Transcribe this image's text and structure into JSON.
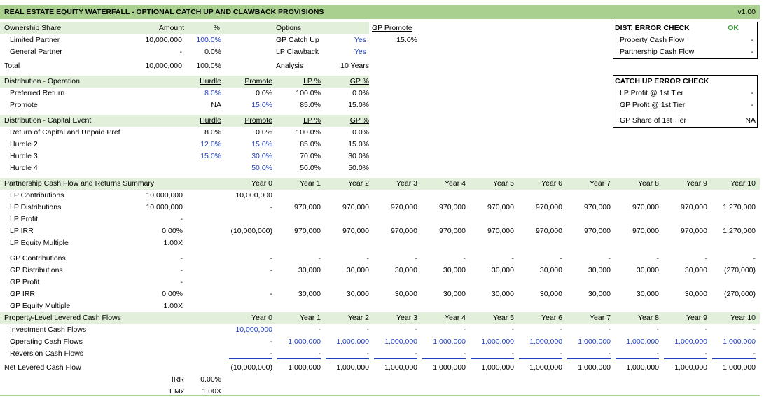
{
  "header": {
    "title": "REAL ESTATE EQUITY WATERFALL - OPTIONAL CATCH UP AND CLAWBACK PROVISIONS",
    "version": "v1.00"
  },
  "ownership": {
    "columns": [
      "Ownership Share",
      "Amount",
      "%"
    ],
    "rows": [
      [
        "Limited Partner",
        "10,000,000",
        "100.0%"
      ],
      [
        "General Partner",
        "-",
        "0.0%"
      ]
    ],
    "total": [
      "Total",
      "10,000,000",
      "100.0%"
    ]
  },
  "options": {
    "title": "Options",
    "rows": [
      [
        "GP Catch Up",
        "Yes"
      ],
      [
        "LP Clawback",
        "Yes"
      ]
    ],
    "analysis": [
      "Analysis",
      "10 Years"
    ],
    "gp_promote": [
      "GP Promote",
      "15.0%"
    ]
  },
  "distribution_operation": {
    "columns": [
      "Distribution - Operation",
      "Hurdle",
      "Promote",
      "LP %",
      "GP %"
    ],
    "rows": [
      [
        "Preferred Return",
        "8.0%",
        "0.0%",
        "100.0%",
        "0.0%"
      ],
      [
        "Promote",
        "NA",
        "15.0%",
        "85.0%",
        "15.0%"
      ]
    ]
  },
  "distribution_capital": {
    "columns": [
      "Distribution - Capital Event",
      "Hurdle",
      "Promote",
      "LP %",
      "GP %"
    ],
    "rows": [
      [
        "Return of Capital and Unpaid Pref",
        "8.0%",
        "0.0%",
        "100.0%",
        "0.0%"
      ],
      [
        "Hurdle 2",
        "12.0%",
        "15.0%",
        "85.0%",
        "15.0%"
      ],
      [
        "Hurdle 3",
        "15.0%",
        "30.0%",
        "70.0%",
        "30.0%"
      ],
      [
        "Hurdle 4",
        null,
        "50.0%",
        "50.0%",
        "50.0%"
      ]
    ]
  },
  "dist_error_check": {
    "title": "DIST. ERROR CHECK",
    "status": "OK",
    "rows": [
      [
        "Property Cash Flow",
        "-"
      ],
      [
        "Partnership Cash Flow",
        "-"
      ]
    ]
  },
  "catch_up_error_check": {
    "title": "CATCH UP ERROR CHECK",
    "rows": [
      [
        "LP Profit @ 1st Tier",
        "-"
      ],
      [
        "GP Profit @ 1st Tier",
        "-"
      ]
    ],
    "gp_share": [
      "GP Share of 1st Tier",
      "NA"
    ]
  },
  "partnership_summary": {
    "columns": [
      "Partnership Cash Flow and Returns Summary",
      "Year 0",
      "Year 1",
      "Year 2",
      "Year 3",
      "Year 4",
      "Year 5",
      "Year 6",
      "Year 7",
      "Year 8",
      "Year 9",
      "Year 10"
    ],
    "lp_rows": [
      [
        "LP Contributions",
        "10,000,000",
        "10,000,000",
        null,
        null,
        null,
        null,
        null,
        null,
        null,
        null,
        null,
        null
      ],
      [
        "LP Distributions",
        "10,000,000",
        "-",
        "970,000",
        "970,000",
        "970,000",
        "970,000",
        "970,000",
        "970,000",
        "970,000",
        "970,000",
        "970,000",
        "1,270,000"
      ],
      [
        "LP Profit",
        "-",
        null,
        null,
        null,
        null,
        null,
        null,
        null,
        null,
        null,
        null,
        null
      ],
      [
        "LP IRR",
        "0.00%",
        "(10,000,000)",
        "970,000",
        "970,000",
        "970,000",
        "970,000",
        "970,000",
        "970,000",
        "970,000",
        "970,000",
        "970,000",
        "1,270,000"
      ],
      [
        "LP Equity Multiple",
        "1.00X",
        null,
        null,
        null,
        null,
        null,
        null,
        null,
        null,
        null,
        null,
        null
      ]
    ],
    "gp_rows": [
      [
        "GP Contributions",
        "-",
        "-",
        "-",
        "-",
        "-",
        "-",
        "-",
        "-",
        "-",
        "-",
        "-",
        "-"
      ],
      [
        "GP Distributions",
        "-",
        "-",
        "30,000",
        "30,000",
        "30,000",
        "30,000",
        "30,000",
        "30,000",
        "30,000",
        "30,000",
        "30,000",
        "(270,000)"
      ],
      [
        "GP Profit",
        "-",
        null,
        null,
        null,
        null,
        null,
        null,
        null,
        null,
        null,
        null,
        null
      ],
      [
        "GP IRR",
        "0.00%",
        "-",
        "30,000",
        "30,000",
        "30,000",
        "30,000",
        "30,000",
        "30,000",
        "30,000",
        "30,000",
        "30,000",
        "(270,000)"
      ],
      [
        "GP Equity Multiple",
        "1.00X",
        null,
        null,
        null,
        null,
        null,
        null,
        null,
        null,
        null,
        null,
        null
      ]
    ]
  },
  "property_level": {
    "columns": [
      "Property-Level Levered Cash Flows",
      "Year 0",
      "Year 1",
      "Year 2",
      "Year 3",
      "Year 4",
      "Year 5",
      "Year 6",
      "Year 7",
      "Year 8",
      "Year 9",
      "Year 10"
    ],
    "rows": [
      [
        "Investment Cash Flows",
        "10,000,000",
        "-",
        "-",
        "-",
        "-",
        "-",
        "-",
        "-",
        "-",
        "-",
        "-"
      ],
      [
        "Operating Cash Flows",
        "-",
        "1,000,000",
        "1,000,000",
        "1,000,000",
        "1,000,000",
        "1,000,000",
        "1,000,000",
        "1,000,000",
        "1,000,000",
        "1,000,000",
        "1,000,000"
      ],
      [
        "Reversion Cash Flows",
        "-",
        "-",
        "-",
        "-",
        "-",
        "-",
        "-",
        "-",
        "-",
        "-",
        "-"
      ]
    ],
    "net": [
      "Net Levered Cash Flow",
      "(10,000,000)",
      "1,000,000",
      "1,000,000",
      "1,000,000",
      "1,000,000",
      "1,000,000",
      "1,000,000",
      "1,000,000",
      "1,000,000",
      "1,000,000",
      "1,000,000"
    ],
    "returns": [
      [
        "IRR",
        "0.00%"
      ],
      [
        "EMx",
        "1.00X"
      ]
    ]
  }
}
